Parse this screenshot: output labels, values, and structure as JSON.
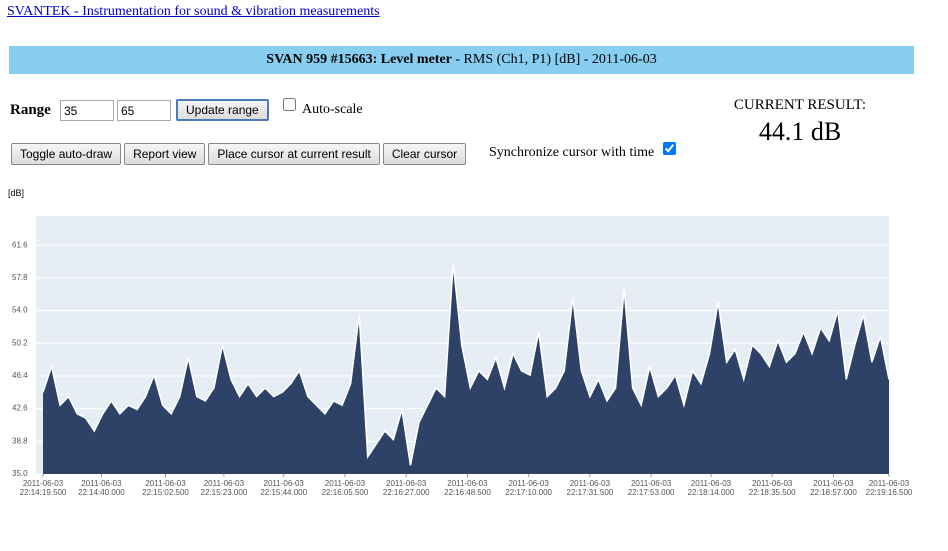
{
  "header": {
    "link": "SVANTEK - Instrumentation for sound & vibration measurements",
    "title_bold": "SVAN 959 #15663: Level meter",
    "title_rest": " - RMS (Ch1, P1) [dB] - 2011-06-03"
  },
  "controls": {
    "range_label": "Range",
    "range_min": "35",
    "range_max": "65",
    "update": "Update range",
    "autoscale": "Auto-scale",
    "autoscale_checked": false,
    "buttons": [
      "Toggle auto-draw",
      "Report view",
      "Place cursor at current result",
      "Clear cursor"
    ],
    "sync": "Synchronize cursor with time",
    "sync_checked": true
  },
  "result": {
    "label": "CURRENT RESULT:",
    "value": "44.1 dB"
  },
  "chart_data": {
    "type": "area",
    "ylabel": "[dB]",
    "color": "#2e4268",
    "line_color": "#ffffff",
    "grid": true,
    "x": [
      0,
      3,
      6,
      9,
      12,
      15,
      18,
      21,
      24,
      27,
      30,
      33,
      36,
      39,
      42,
      45,
      48,
      51,
      54,
      57,
      60,
      63,
      66,
      69,
      72,
      75,
      78,
      81,
      84,
      87,
      90,
      93,
      96,
      99,
      102,
      105,
      108,
      111,
      114,
      117,
      120,
      123,
      126,
      129,
      132,
      135,
      138,
      141,
      144,
      147,
      150,
      153,
      156,
      159,
      162,
      165,
      168,
      171,
      174,
      177,
      180,
      183,
      186,
      189,
      192,
      195,
      198,
      201,
      204,
      207,
      210,
      213,
      216,
      219,
      222,
      225,
      228,
      231,
      234,
      237,
      240,
      243,
      246,
      249,
      252,
      255,
      258,
      261,
      264,
      267,
      270,
      273,
      276,
      279,
      282,
      285,
      288,
      291,
      294,
      297
    ],
    "values": [
      44.5,
      47.5,
      43,
      44,
      42,
      41.5,
      40,
      42,
      43.5,
      42,
      43,
      42.5,
      44,
      46.5,
      43,
      42,
      44,
      48.5,
      44,
      43.5,
      45,
      50,
      46,
      44,
      45.5,
      44,
      45,
      44,
      44.5,
      45.5,
      47,
      44,
      43,
      42,
      43.5,
      43,
      45.5,
      53.5,
      37,
      38.5,
      40,
      39,
      42.5,
      36,
      41,
      43,
      45,
      44,
      59.5,
      50,
      45,
      47,
      46,
      48.5,
      45,
      49,
      47,
      46.5,
      51.5,
      44,
      45,
      47,
      55.5,
      47,
      44,
      46,
      43.5,
      45,
      56.5,
      45,
      43,
      47.5,
      44,
      45,
      46.5,
      43,
      47,
      45.5,
      49,
      55,
      48,
      49.5,
      46,
      50,
      49,
      47.5,
      50.5,
      48,
      49,
      51.5,
      49,
      52,
      50.5,
      54,
      46,
      50,
      53.5,
      48,
      51,
      46
    ],
    "xlim": [
      0,
      297
    ],
    "ylim": [
      35,
      65
    ],
    "yticks": [
      {
        "value": 35,
        "label": "35.0"
      },
      {
        "value": 38.8,
        "label": "38.8"
      },
      {
        "value": 42.6,
        "label": "42.6"
      },
      {
        "value": 46.4,
        "label": "46.4"
      },
      {
        "value": 50.2,
        "label": "50.2"
      },
      {
        "value": 54,
        "label": "54.0"
      },
      {
        "value": 57.8,
        "label": "57.8"
      },
      {
        "value": 61.6,
        "label": "61.6"
      }
    ],
    "xticks": [
      {
        "value": 0,
        "label": "2011-06-03\n22:14:19.500"
      },
      {
        "value": 20.5,
        "label": "2011-06-03\n22:14:40.000"
      },
      {
        "value": 43,
        "label": "2011-06-03\n22:15:02.500"
      },
      {
        "value": 63.5,
        "label": "2011-06-03\n22:15:23.000"
      },
      {
        "value": 84.5,
        "label": "2011-06-03\n22:15:44.000"
      },
      {
        "value": 106,
        "label": "2011-06-03\n22:16:05.500"
      },
      {
        "value": 127.5,
        "label": "2011-06-03\n22:16:27.000"
      },
      {
        "value": 149,
        "label": "2011-06-03\n22:16:48.500"
      },
      {
        "value": 170.5,
        "label": "2011-06-03\n22:17:10.000"
      },
      {
        "value": 192,
        "label": "2011-06-03\n22:17:31.500"
      },
      {
        "value": 213.5,
        "label": "2011-06-03\n22:17:53.000"
      },
      {
        "value": 234.5,
        "label": "2011-06-03\n22:18:14.000"
      },
      {
        "value": 256,
        "label": "2011-06-03\n22:18:35.500"
      },
      {
        "value": 277.5,
        "label": "2011-06-03\n22:18:57.000"
      },
      {
        "value": 297,
        "label": "2011-06-03\n22:19:16.500"
      }
    ]
  }
}
